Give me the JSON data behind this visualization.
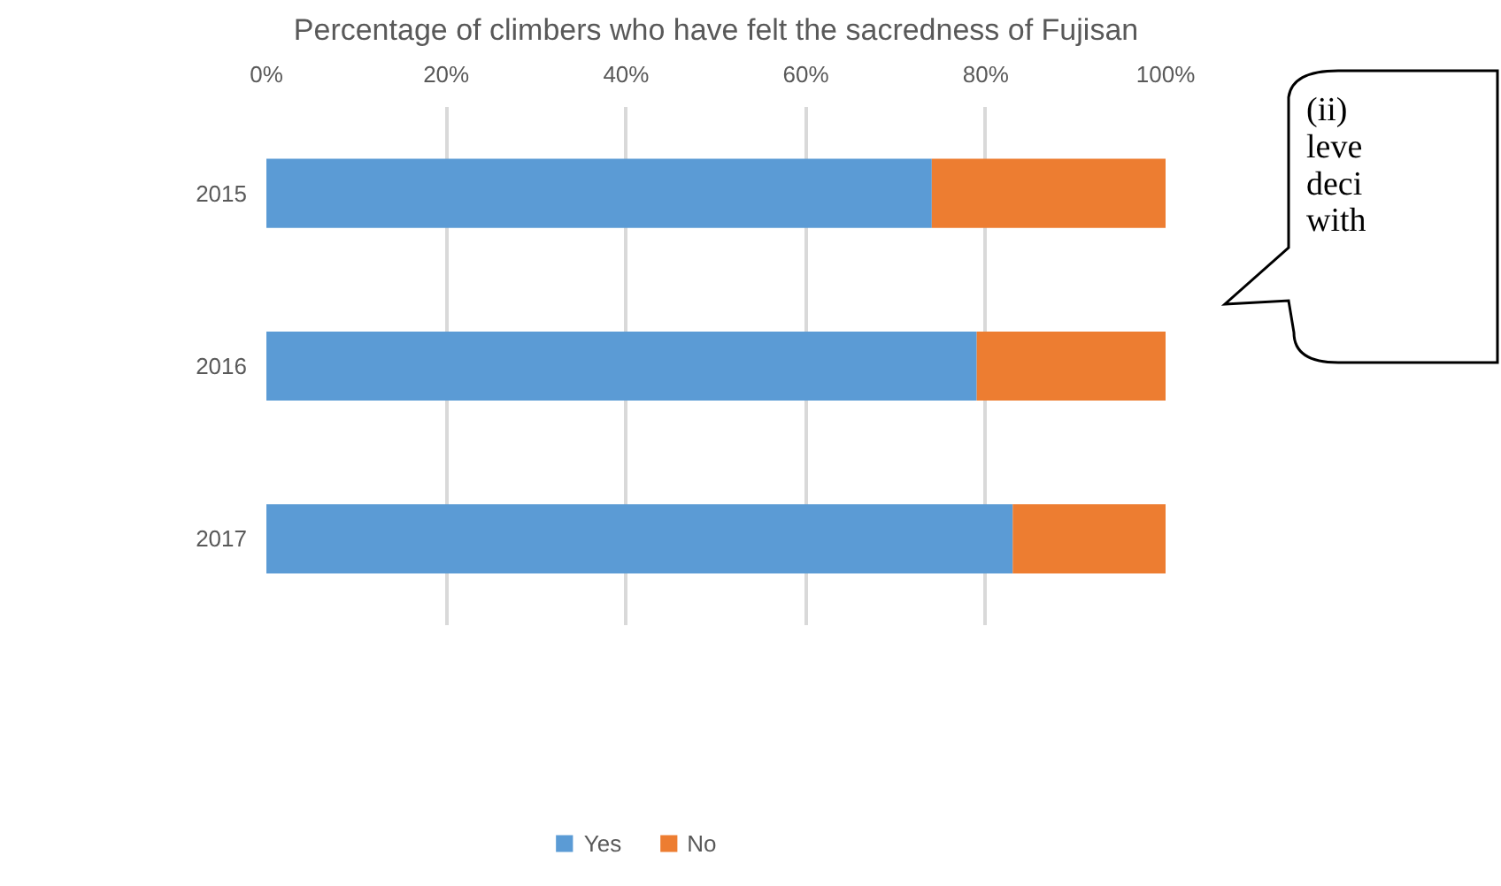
{
  "chart_data": {
    "type": "bar",
    "orientation": "horizontal",
    "stacked": true,
    "title": "Percentage of climbers who have felt the sacredness of Fujisan",
    "categories": [
      "2015",
      "2016",
      "2017"
    ],
    "series": [
      {
        "name": "Yes",
        "color": "#5b9bd5",
        "values": [
          74,
          79,
          83
        ]
      },
      {
        "name": "No",
        "color": "#ed7d31",
        "values": [
          26,
          21,
          17
        ]
      }
    ],
    "xlim": [
      0,
      100
    ],
    "xticks": [
      {
        "value": 0,
        "label": "0%"
      },
      {
        "value": 20,
        "label": "20%"
      },
      {
        "value": 40,
        "label": "40%"
      },
      {
        "value": 60,
        "label": "60%"
      },
      {
        "value": 80,
        "label": "80%"
      },
      {
        "value": 100,
        "label": "100%"
      }
    ],
    "grid": "x",
    "legend": "bottom",
    "annotations": [
      "(ii)\nleve\ndeci\nwith"
    ]
  }
}
